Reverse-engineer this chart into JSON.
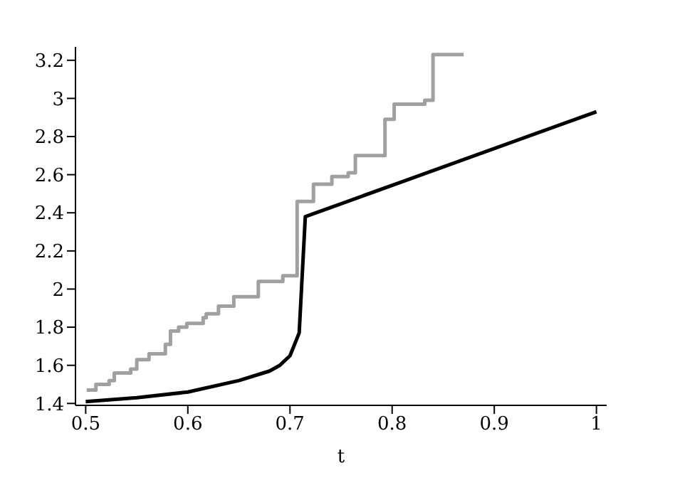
{
  "chart_data": {
    "type": "line",
    "xlabel": "t",
    "xlim": [
      0.49,
      1.01
    ],
    "ylim": [
      1.39,
      3.27
    ],
    "xticks": [
      0.5,
      0.6,
      0.7,
      0.8,
      0.9,
      1
    ],
    "yticks": [
      1.4,
      1.6,
      1.8,
      2,
      2.2,
      2.4,
      2.6,
      2.8,
      3,
      3.2
    ],
    "grid": false,
    "marker": "none",
    "line_style": "solid",
    "series": [
      {
        "type": "step",
        "color": "#a0a0a0",
        "x": [
          0.501,
          0.51,
          0.523,
          0.528,
          0.544,
          0.55,
          0.562,
          0.578,
          0.583,
          0.591,
          0.599,
          0.615,
          0.618,
          0.63,
          0.645,
          0.669,
          0.693,
          0.707,
          0.723,
          0.741,
          0.757,
          0.764,
          0.793,
          0.802,
          0.832,
          0.84,
          0.87
        ],
        "values": [
          1.47,
          1.5,
          1.52,
          1.56,
          1.58,
          1.63,
          1.66,
          1.71,
          1.78,
          1.8,
          1.82,
          1.85,
          1.87,
          1.91,
          1.96,
          2.04,
          2.07,
          2.46,
          2.55,
          2.59,
          2.61,
          2.7,
          2.89,
          2.97,
          2.99,
          3.23,
          3.23
        ]
      },
      {
        "type": "line",
        "color": "#000000",
        "x": [
          0.5,
          0.55,
          0.6,
          0.65,
          0.68,
          0.69,
          0.7,
          0.706,
          0.709,
          0.715,
          1
        ],
        "values": [
          1.41,
          1.43,
          1.46,
          1.52,
          1.57,
          1.6,
          1.65,
          1.73,
          1.77,
          2.38,
          2.93
        ]
      }
    ]
  }
}
